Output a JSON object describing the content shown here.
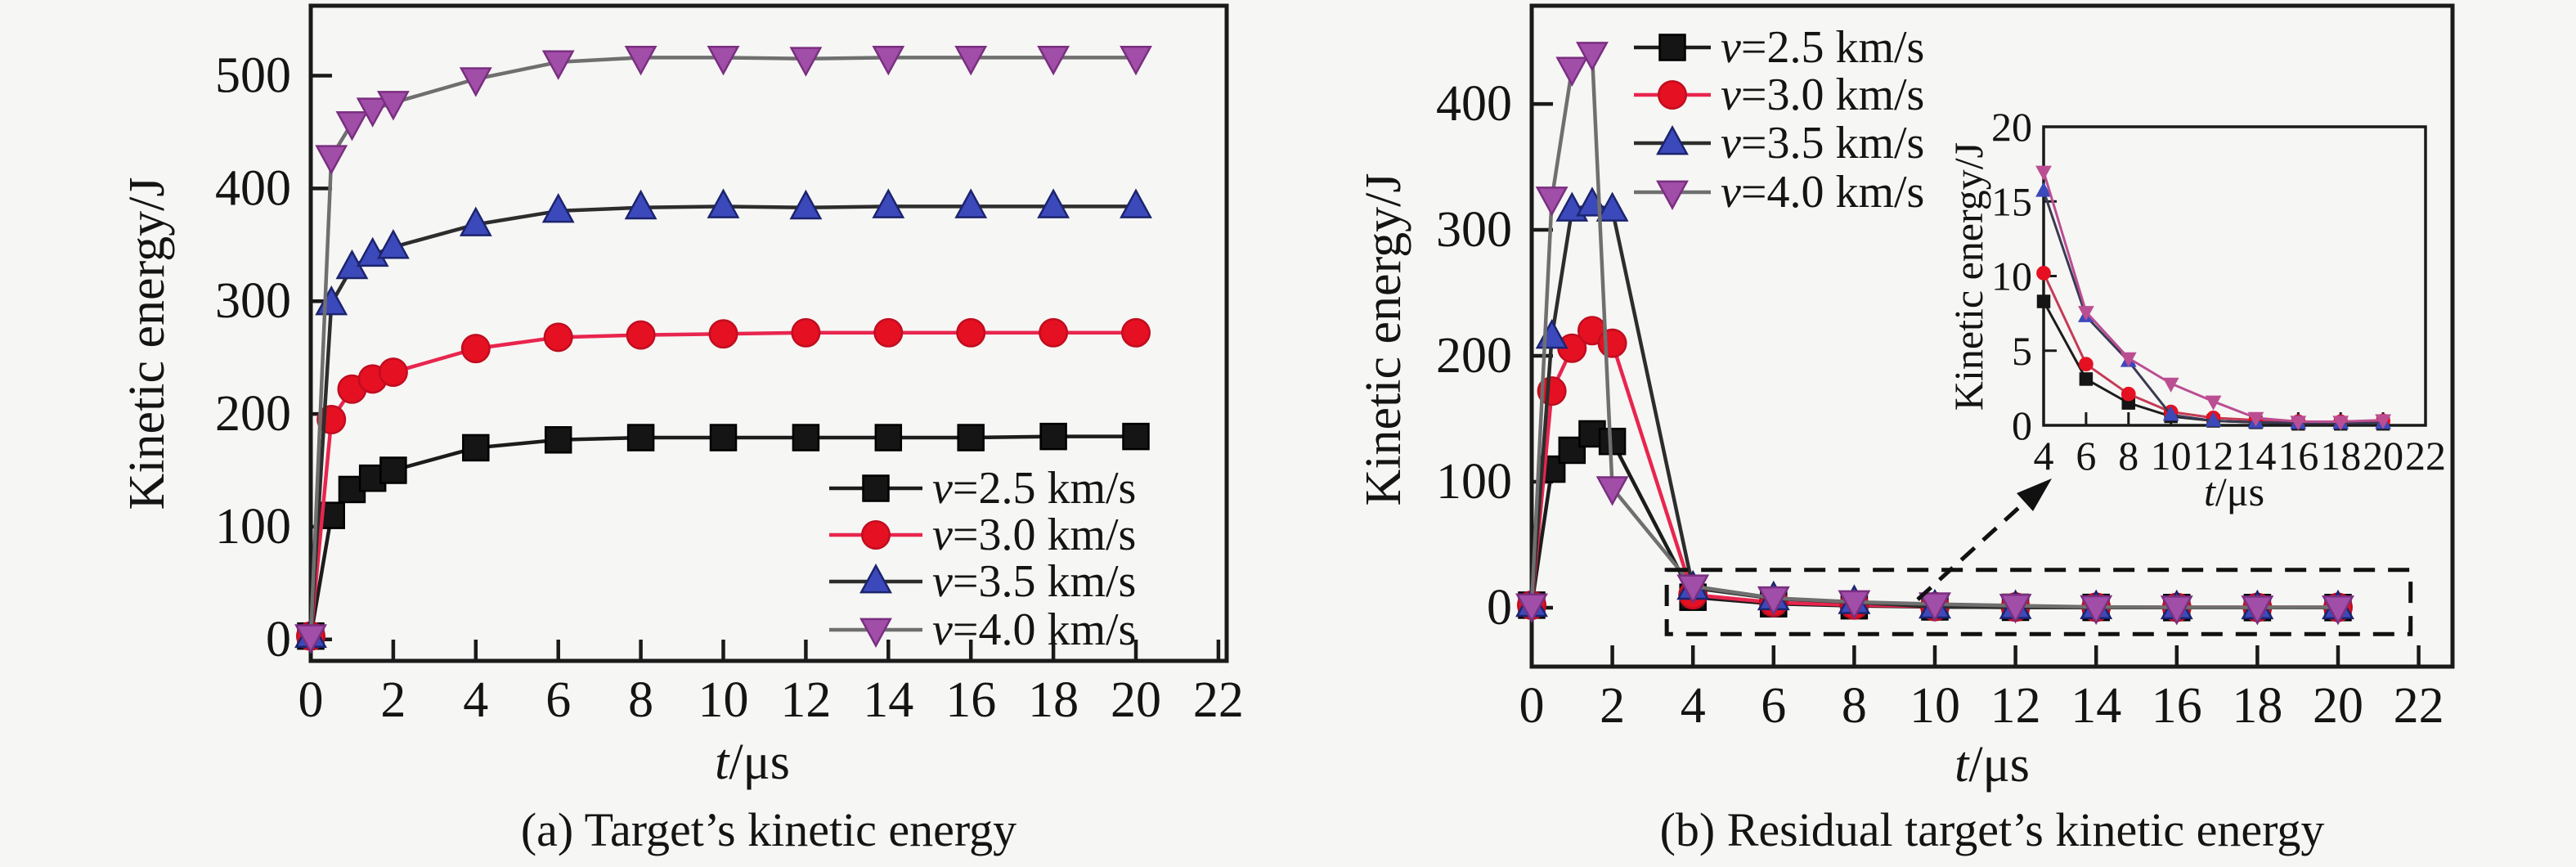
{
  "figure": {
    "background": "#f6f6f4",
    "frame_color": "#1a1a1a",
    "text_color": "#141414"
  },
  "captions": {
    "a": "(a) Target’s kinetic energy",
    "b": "(b) Residual target’s kinetic energy"
  },
  "legend": {
    "items": [
      {
        "label": "v=2.5 km/s",
        "marker": "square-icon"
      },
      {
        "label": "v=3.0 km/s",
        "marker": "circle-icon"
      },
      {
        "label": "v=3.5 km/s",
        "marker": "triangle-up-icon"
      },
      {
        "label": "v=4.0 km/s",
        "marker": "triangle-down-icon"
      }
    ]
  },
  "chart_data": [
    {
      "id": "a",
      "type": "line",
      "title": "(a) Target’s kinetic energy",
      "xlabel": "t/μs",
      "ylabel": "Kinetic energy/J",
      "xlim": [
        0,
        22.2
      ],
      "ylim": [
        -19,
        562
      ],
      "xticks": [
        0,
        2,
        4,
        6,
        8,
        10,
        12,
        14,
        16,
        18,
        20,
        22
      ],
      "yticks": [
        0,
        100,
        200,
        300,
        400,
        500
      ],
      "grid": false,
      "legend_position": "lower right",
      "x": [
        0,
        0.5,
        1,
        1.5,
        2,
        4,
        6,
        8,
        10,
        12,
        14,
        16,
        18,
        20
      ],
      "series": [
        {
          "name": "v=2.5 km/s",
          "marker": "square",
          "color": "#151515",
          "line_color": "#1c1c1c",
          "edge_color": "#000000",
          "values": [
            3,
            110,
            133,
            143,
            150,
            170,
            177,
            179,
            179,
            179,
            179,
            179,
            180,
            180
          ]
        },
        {
          "name": "v=3.0 km/s",
          "marker": "circle",
          "color": "#e51021",
          "line_color": "#e8254e",
          "edge_color": "#c00d20",
          "values": [
            3,
            195,
            222,
            231,
            237,
            258,
            268,
            270,
            271,
            272,
            272,
            272,
            272,
            272
          ]
        },
        {
          "name": "v=3.5 km/s",
          "marker": "triangle-up",
          "color": "#3c49bb",
          "line_color": "#2d2d2d",
          "edge_color": "#1c246e",
          "values": [
            3,
            298,
            330,
            341,
            348,
            368,
            380,
            383,
            384,
            383,
            384,
            384,
            384,
            384
          ]
        },
        {
          "name": "v=4.0 km/s",
          "marker": "triangle-down",
          "color": "#a14ea8",
          "line_color": "#6f6f6f",
          "edge_color": "#7a2f80",
          "values": [
            3,
            428,
            458,
            470,
            476,
            497,
            512,
            516,
            516,
            515,
            516,
            516,
            516,
            516
          ]
        }
      ]
    },
    {
      "id": "b",
      "type": "line",
      "title": "(b) Residual target’s kinetic energy",
      "xlabel": "t/μs",
      "ylabel": "Kinetic energy/J",
      "xlim": [
        0,
        22.84
      ],
      "ylim": [
        -46.8,
        478
      ],
      "xticks": [
        0,
        2,
        4,
        6,
        8,
        10,
        12,
        14,
        16,
        18,
        20,
        22
      ],
      "yticks": [
        0,
        100,
        200,
        300,
        400
      ],
      "grid": false,
      "legend_position": "upper left",
      "x": [
        0,
        0.5,
        1,
        1.5,
        2,
        4,
        6,
        8,
        10,
        12,
        14,
        16,
        18,
        20
      ],
      "series": [
        {
          "name": "v=2.5 km/s",
          "marker": "square",
          "color": "#151515",
          "line_color": "#1c1c1c",
          "edge_color": "#000000",
          "values": [
            2,
            110,
            125,
            138,
            132,
            8.3,
            3.1,
            1.5,
            0.6,
            0.3,
            0.2,
            0.1,
            0.1,
            0.1
          ]
        },
        {
          "name": "v=3.0 km/s",
          "marker": "circle",
          "color": "#e51021",
          "line_color": "#e8254e",
          "edge_color": "#c00d20",
          "values": [
            2,
            172,
            206,
            220,
            210,
            10.2,
            4.1,
            2.1,
            0.9,
            0.5,
            0.35,
            0.25,
            0.25,
            0.3
          ]
        },
        {
          "name": "v=3.5 km/s",
          "marker": "triangle-up",
          "color": "#3c49bb",
          "line_color": "#2d2d2d",
          "edge_color": "#1c246e",
          "values": [
            2,
            215,
            316,
            320,
            316,
            15.7,
            7.3,
            4.3,
            0.7,
            0.3,
            0.2,
            0.15,
            0.15,
            0.15
          ]
        },
        {
          "name": "v=4.0 km/s",
          "marker": "triangle-down",
          "color": "#a14ea8",
          "line_color": "#6f6f6f",
          "edge_color": "#7a2f80",
          "values": [
            2,
            325,
            428,
            440,
            95,
            17,
            7.6,
            4.5,
            2.8,
            1.6,
            0.5,
            0.25,
            0.25,
            0.35
          ]
        }
      ],
      "annotations": {
        "dashed_box": {
          "x": [
            3.35,
            21.8
          ],
          "y": [
            -21,
            30
          ]
        },
        "zoom_arrow": true
      },
      "inset": {
        "type": "line",
        "xlabel": "t/μs",
        "ylabel": "Kinetic energy/J",
        "xlim": [
          4,
          22
        ],
        "ylim": [
          0,
          20
        ],
        "xticks": [
          4,
          6,
          8,
          10,
          12,
          14,
          16,
          18,
          20,
          22
        ],
        "yticks": [
          0,
          5,
          10,
          15,
          20
        ],
        "x": [
          4,
          6,
          8,
          10,
          12,
          14,
          16,
          18,
          20
        ],
        "series": [
          {
            "name": "v=2.5 km/s",
            "marker": "square",
            "color": "#151515",
            "line_color": "#1c1c1c",
            "values": [
              8.3,
              3.1,
              1.5,
              0.6,
              0.3,
              0.2,
              0.1,
              0.1,
              0.1
            ]
          },
          {
            "name": "v=3.0 km/s",
            "marker": "circle",
            "color": "#e51021",
            "line_color": "#c43b55",
            "values": [
              10.2,
              4.1,
              2.1,
              0.9,
              0.5,
              0.35,
              0.25,
              0.25,
              0.3
            ]
          },
          {
            "name": "v=3.5 km/s",
            "marker": "triangle-up",
            "color": "#3c49bb",
            "line_color": "#3a3a52",
            "values": [
              15.7,
              7.3,
              4.3,
              0.7,
              0.3,
              0.2,
              0.15,
              0.15,
              0.15
            ]
          },
          {
            "name": "v=4.0 km/s",
            "marker": "triangle-down",
            "color": "#bb4e92",
            "line_color": "#bb4e92",
            "values": [
              17,
              7.6,
              4.5,
              2.8,
              1.6,
              0.5,
              0.25,
              0.25,
              0.35
            ]
          }
        ]
      }
    }
  ]
}
